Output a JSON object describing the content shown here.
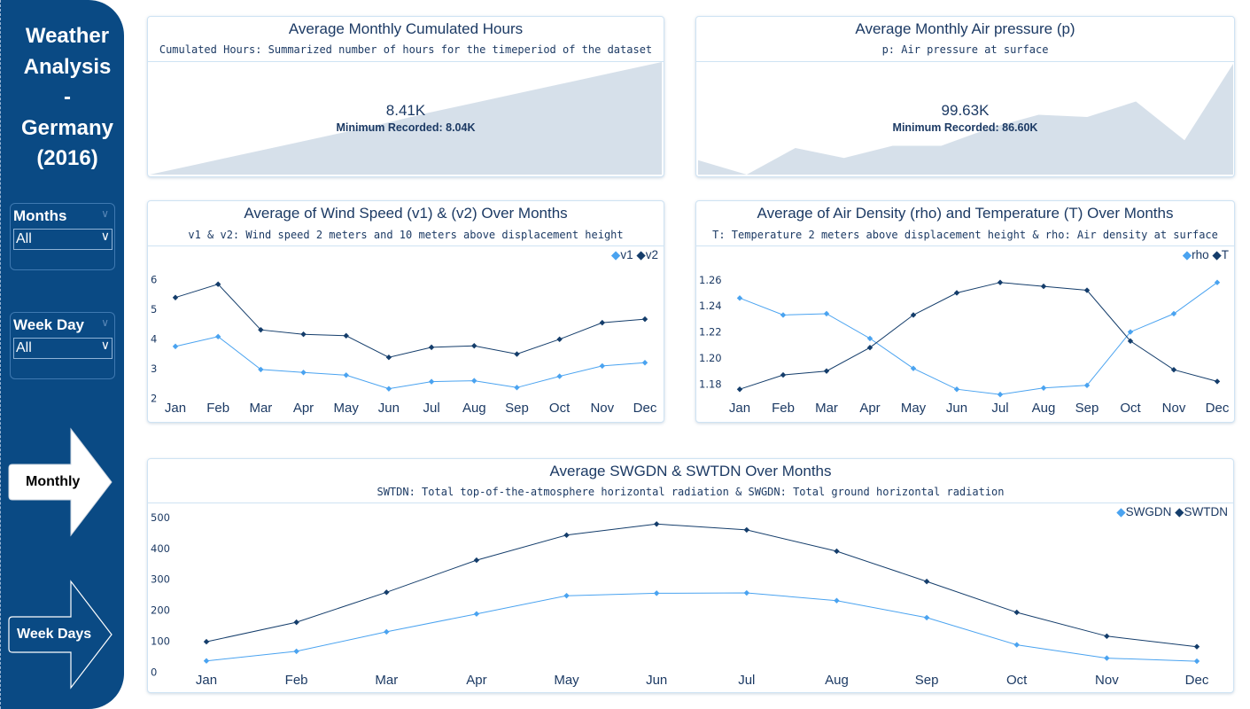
{
  "sidebar": {
    "title_lines": [
      "Weather",
      "Analysis",
      "-",
      "Germany",
      "(2016)"
    ],
    "slicers": [
      {
        "label": "Months",
        "value": "All"
      },
      {
        "label": "Week Day",
        "value": "All"
      }
    ],
    "nav": {
      "monthly": "Monthly",
      "week_days": "Week Days"
    }
  },
  "colors": {
    "sidebar": "#0a4a84",
    "series_light": "#4aa3f0",
    "series_dark": "#143d6b",
    "area_fill": "#d6e0ea"
  },
  "kpis": [
    {
      "title": "Average Monthly Cumulated Hours",
      "subtitle": "Cumulated Hours: Summarized number of hours for the timeperiod of the dataset",
      "value": "8.41K",
      "minimum": "Minimum Recorded: 8.04K"
    },
    {
      "title": "Average Monthly Air pressure (p)",
      "subtitle": "p: Air pressure at surface",
      "value": "99.63K",
      "minimum": "Minimum Recorded: 86.60K"
    }
  ],
  "chart_data": [
    {
      "type": "area",
      "title": "Average Monthly Cumulated Hours",
      "x": [
        "Jan",
        "Feb",
        "Mar",
        "Apr",
        "May",
        "Jun",
        "Jul",
        "Aug",
        "Sep",
        "Oct",
        "Nov",
        "Dec"
      ],
      "values": [
        0.0,
        0.09,
        0.18,
        0.27,
        0.36,
        0.45,
        0.55,
        0.64,
        0.73,
        0.82,
        0.91,
        1.0
      ],
      "normalized": true
    },
    {
      "type": "area",
      "title": "Average Monthly Air pressure (p)",
      "x": [
        "Jan",
        "Feb",
        "Mar",
        "Apr",
        "May",
        "Jun",
        "Jul",
        "Aug",
        "Sep",
        "Oct",
        "Nov",
        "Dec"
      ],
      "values": [
        0.13,
        0.0,
        0.24,
        0.15,
        0.26,
        0.26,
        0.42,
        0.54,
        0.52,
        0.66,
        0.31,
        1.0
      ],
      "normalized": true
    },
    {
      "type": "line",
      "title": "Average of Wind Speed (v1) & (v2) Over Months",
      "subtitle": "v1 & v2: Wind speed 2 meters and 10 meters above displacement height",
      "categories": [
        "Jan",
        "Feb",
        "Mar",
        "Apr",
        "May",
        "Jun",
        "Jul",
        "Aug",
        "Sep",
        "Oct",
        "Nov",
        "Dec"
      ],
      "series": [
        {
          "name": "v1",
          "values": [
            3.75,
            4.08,
            2.97,
            2.87,
            2.78,
            2.32,
            2.56,
            2.59,
            2.36,
            2.74,
            3.09,
            3.2
          ]
        },
        {
          "name": "v2",
          "values": [
            5.4,
            5.85,
            4.31,
            4.16,
            4.11,
            3.38,
            3.72,
            3.77,
            3.49,
            3.99,
            4.55,
            4.67
          ]
        }
      ],
      "yticks": [
        2,
        3,
        4,
        5,
        6
      ],
      "ylim": [
        1.95,
        6.35
      ],
      "legend": "top-right"
    },
    {
      "type": "line",
      "title": "Average of Air Density (rho) and Temperature (T) Over Months",
      "subtitle": "T: Temperature 2 meters above displacement height & rho: Air density at surface",
      "categories": [
        "Jan",
        "Feb",
        "Mar",
        "Apr",
        "May",
        "Jun",
        "Jul",
        "Aug",
        "Sep",
        "Oct",
        "Nov",
        "Dec"
      ],
      "series": [
        {
          "name": "rho",
          "values": [
            1.246,
            1.233,
            1.234,
            1.215,
            1.192,
            1.176,
            1.172,
            1.177,
            1.179,
            1.22,
            1.234,
            1.258
          ]
        },
        {
          "name": "T",
          "values": [
            1.176,
            1.187,
            1.19,
            1.208,
            1.233,
            1.25,
            1.258,
            1.255,
            1.252,
            1.213,
            1.191,
            1.182
          ]
        }
      ],
      "yticks": [
        1.18,
        1.2,
        1.22,
        1.24,
        1.26
      ],
      "ylim": [
        1.168,
        1.268
      ],
      "legend": "top-right"
    },
    {
      "type": "line",
      "title": "Average SWGDN & SWTDN Over Months",
      "subtitle": "SWTDN: Total top-of-the-atmosphere horizontal radiation & SWGDN: Total ground horizontal radiation",
      "categories": [
        "Jan",
        "Feb",
        "Mar",
        "Apr",
        "May",
        "Jun",
        "Jul",
        "Aug",
        "Sep",
        "Oct",
        "Nov",
        "Dec"
      ],
      "series": [
        {
          "name": "SWGDN",
          "values": [
            36,
            67,
            130,
            188,
            247,
            255,
            256,
            231,
            176,
            88,
            45,
            35
          ]
        },
        {
          "name": "SWTDN",
          "values": [
            98,
            161,
            258,
            362,
            443,
            479,
            460,
            391,
            293,
            193,
            116,
            82
          ]
        }
      ],
      "yticks": [
        0,
        100,
        200,
        300,
        400,
        500
      ],
      "ylim": [
        -5,
        520
      ],
      "legend": "top-right"
    }
  ]
}
